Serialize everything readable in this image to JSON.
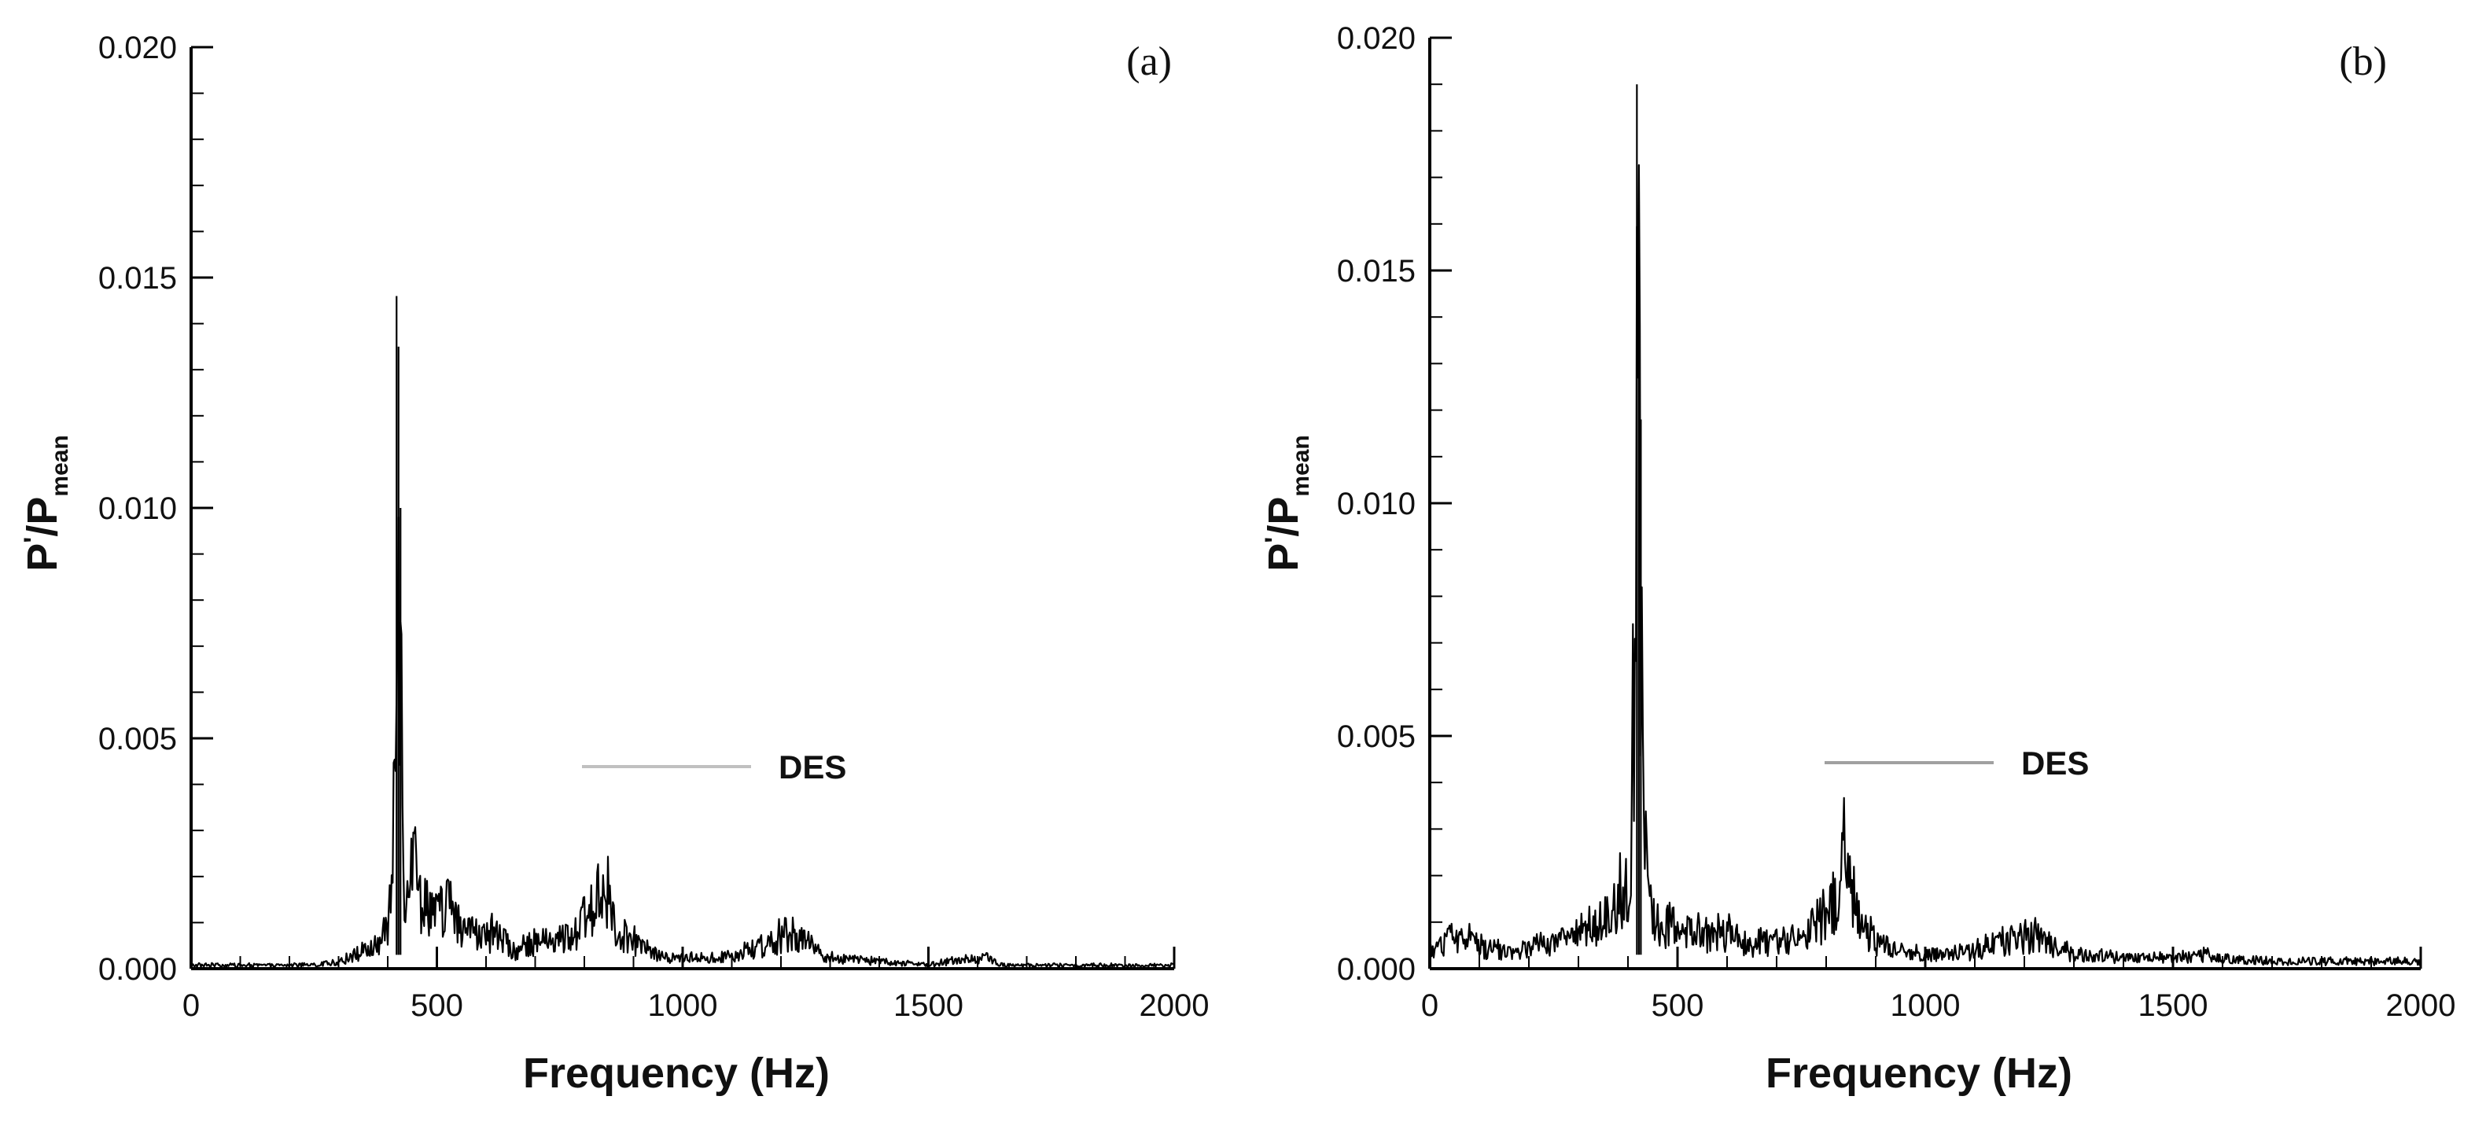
{
  "chart_data": [
    {
      "type": "line",
      "panel_label": "(a)",
      "xlabel": "Frequency (Hz)",
      "ylabel": {
        "main": "P",
        "prime": "'",
        "slash": "/P",
        "sub": "mean"
      },
      "xlim": [
        0,
        2000
      ],
      "ylim": [
        0,
        0.02
      ],
      "xticks": [
        "0",
        "500",
        "1000",
        "1500",
        "2000"
      ],
      "yticks": [
        "0.000",
        "0.005",
        "0.010",
        "0.015",
        "0.020"
      ],
      "grid": false,
      "legend_position": "center-right",
      "series": [
        {
          "name": "DES",
          "color": "#000000",
          "legend_color": "#c0c0c0",
          "x": [
            0,
            50,
            100,
            150,
            200,
            250,
            300,
            340,
            380,
            400,
            410,
            418,
            422,
            426,
            430,
            435,
            445,
            460,
            480,
            500,
            520,
            550,
            580,
            620,
            660,
            700,
            740,
            780,
            810,
            830,
            845,
            860,
            880,
            900,
            940,
            980,
            1050,
            1100,
            1150,
            1200,
            1230,
            1260,
            1300,
            1400,
            1500,
            1580,
            1620,
            1650,
            1700,
            1800,
            1900,
            2000
          ],
          "values": [
            0.0001,
            0.0001,
            0.0001,
            0.0001,
            0.0001,
            0.0001,
            0.0002,
            0.0004,
            0.0007,
            0.0012,
            0.003,
            0.0146,
            0.0135,
            0.01,
            0.005,
            0.002,
            0.0035,
            0.0022,
            0.0021,
            0.0015,
            0.002,
            0.001,
            0.0009,
            0.001,
            0.0005,
            0.0008,
            0.0008,
            0.001,
            0.0015,
            0.0024,
            0.0022,
            0.0012,
            0.001,
            0.0008,
            0.0004,
            0.0003,
            0.0003,
            0.0004,
            0.0006,
            0.0009,
            0.001,
            0.0007,
            0.0003,
            0.0002,
            0.0001,
            0.0003,
            0.0003,
            0.0001,
            0.0001,
            0.0001,
            0.0001,
            0.0001
          ]
        }
      ]
    },
    {
      "type": "line",
      "panel_label": "(b)",
      "xlabel": "Frequency (Hz)",
      "ylabel": {
        "main": "P",
        "prime": "'",
        "slash": "/P",
        "sub": "mean"
      },
      "xlim": [
        0,
        2000
      ],
      "ylim": [
        0,
        0.02
      ],
      "xticks": [
        "0",
        "500",
        "1000",
        "1500",
        "2000"
      ],
      "yticks": [
        "0.000",
        "0.005",
        "0.010",
        "0.015",
        "0.020"
      ],
      "grid": false,
      "legend_position": "center-right",
      "series": [
        {
          "name": "DES",
          "color": "#000000",
          "legend_color": "#a0a0a0",
          "x": [
            0,
            30,
            60,
            100,
            150,
            200,
            250,
            300,
            340,
            370,
            390,
            405,
            412,
            418,
            422,
            426,
            430,
            435,
            440,
            450,
            470,
            500,
            530,
            560,
            600,
            650,
            700,
            750,
            790,
            820,
            835,
            845,
            860,
            880,
            900,
            950,
            1000,
            1050,
            1100,
            1150,
            1200,
            1230,
            1260,
            1300,
            1400,
            1500,
            1560,
            1600,
            1700,
            1800,
            1900,
            1950,
            2000
          ],
          "values": [
            0.0004,
            0.0008,
            0.001,
            0.0006,
            0.0005,
            0.0006,
            0.0007,
            0.001,
            0.0012,
            0.002,
            0.0022,
            0.003,
            0.0085,
            0.019,
            0.016,
            0.0118,
            0.005,
            0.0025,
            0.0037,
            0.0015,
            0.0012,
            0.0011,
            0.001,
            0.0009,
            0.001,
            0.0007,
            0.0008,
            0.001,
            0.0014,
            0.0018,
            0.0032,
            0.0025,
            0.0015,
            0.001,
            0.0008,
            0.0005,
            0.0004,
            0.0004,
            0.0005,
            0.0007,
            0.0009,
            0.0009,
            0.0006,
            0.0004,
            0.0003,
            0.0003,
            0.0004,
            0.0003,
            0.0002,
            0.0002,
            0.0002,
            0.0002,
            0.0002
          ]
        }
      ]
    }
  ]
}
